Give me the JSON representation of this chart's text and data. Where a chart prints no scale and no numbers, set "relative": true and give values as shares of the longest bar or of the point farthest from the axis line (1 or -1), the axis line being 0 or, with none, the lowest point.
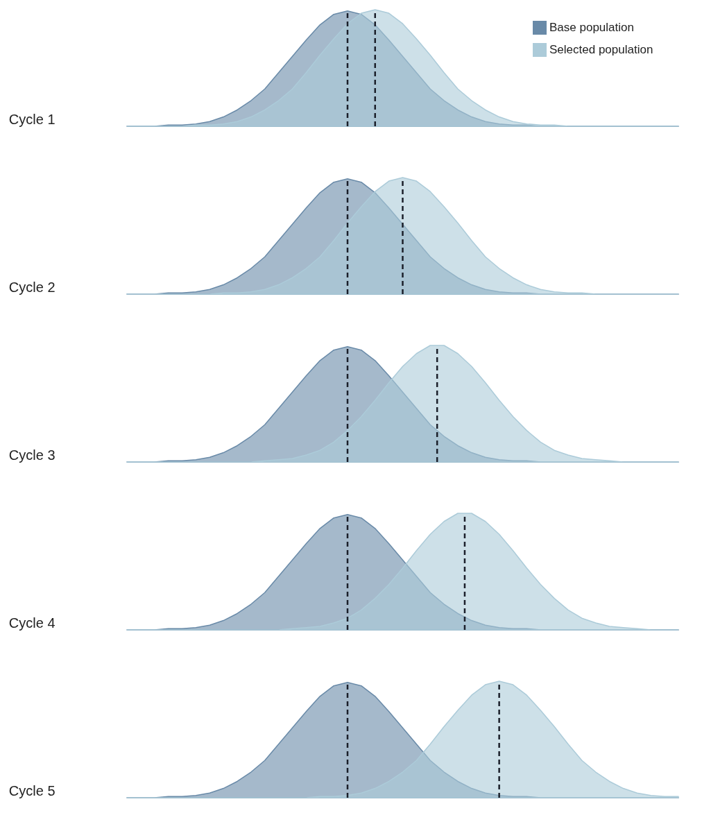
{
  "chart_data": [
    {
      "type": "area",
      "title": "Cycle 1",
      "relative": true,
      "legend": "top right",
      "line_style": "dashed",
      "categories": [
        null,
        null,
        null,
        null,
        null,
        null,
        null,
        null,
        null,
        null,
        null,
        null,
        null,
        null,
        null,
        null,
        null,
        null,
        null,
        null,
        null,
        null,
        null,
        null,
        null,
        null,
        null,
        null,
        null,
        null,
        null,
        null,
        null,
        null,
        null,
        null,
        null,
        null,
        null,
        null,
        null
      ],
      "series": [
        {
          "name": "Base population",
          "color": "#698aa8",
          "values": [
            0,
            0,
            0,
            0.01,
            0.01,
            0.02,
            0.04,
            0.08,
            0.14,
            0.22,
            0.32,
            0.46,
            0.6,
            0.74,
            0.87,
            0.96,
            0.99,
            0.96,
            0.87,
            0.74,
            0.6,
            0.46,
            0.32,
            0.22,
            0.14,
            0.08,
            0.04,
            0.02,
            0.01,
            0.01,
            0,
            0,
            0,
            0,
            0,
            0,
            0,
            0,
            0,
            0,
            0
          ]
        },
        {
          "name": "Selected population",
          "color": "#accbd9",
          "values": [
            0,
            0,
            0,
            0,
            0,
            0.01,
            0.01,
            0.02,
            0.04,
            0.08,
            0.14,
            0.22,
            0.32,
            0.46,
            0.61,
            0.75,
            0.88,
            0.97,
            1,
            0.97,
            0.88,
            0.75,
            0.61,
            0.46,
            0.32,
            0.22,
            0.14,
            0.08,
            0.04,
            0.02,
            0.01,
            0.01,
            0,
            0,
            0,
            0,
            0,
            0,
            0,
            0,
            0
          ]
        }
      ]
    },
    {
      "type": "area",
      "title": "Cycle 2",
      "relative": true,
      "line_style": "dashed",
      "categories": [
        null,
        null,
        null,
        null,
        null,
        null,
        null,
        null,
        null,
        null,
        null,
        null,
        null,
        null,
        null,
        null,
        null,
        null,
        null,
        null,
        null,
        null,
        null,
        null,
        null,
        null,
        null,
        null,
        null,
        null,
        null,
        null,
        null,
        null,
        null,
        null,
        null,
        null,
        null,
        null,
        null
      ],
      "series": [
        {
          "color": "#698aa8",
          "values": [
            0,
            0,
            0,
            0.01,
            0.01,
            0.02,
            0.04,
            0.08,
            0.14,
            0.22,
            0.32,
            0.46,
            0.6,
            0.74,
            0.87,
            0.96,
            0.99,
            0.96,
            0.87,
            0.74,
            0.6,
            0.46,
            0.32,
            0.22,
            0.14,
            0.08,
            0.04,
            0.02,
            0.01,
            0.01,
            0,
            0,
            0,
            0,
            0,
            0,
            0,
            0,
            0,
            0,
            0
          ]
        },
        {
          "color": "#accbd9",
          "values": [
            0,
            0,
            0,
            0,
            0,
            0,
            0,
            0.01,
            0.01,
            0.02,
            0.04,
            0.08,
            0.14,
            0.22,
            0.32,
            0.46,
            0.61,
            0.75,
            0.88,
            0.97,
            1,
            0.97,
            0.88,
            0.75,
            0.61,
            0.46,
            0.32,
            0.22,
            0.14,
            0.08,
            0.04,
            0.02,
            0.01,
            0.01,
            0,
            0,
            0,
            0,
            0,
            0,
            0
          ]
        }
      ]
    },
    {
      "type": "area",
      "title": "Cycle 3",
      "relative": true,
      "line_style": "dashed",
      "categories": [
        null,
        null,
        null,
        null,
        null,
        null,
        null,
        null,
        null,
        null,
        null,
        null,
        null,
        null,
        null,
        null,
        null,
        null,
        null,
        null,
        null,
        null,
        null,
        null,
        null,
        null,
        null,
        null,
        null,
        null,
        null,
        null,
        null,
        null,
        null,
        null,
        null,
        null,
        null,
        null,
        null
      ],
      "series": [
        {
          "color": "#698aa8",
          "values": [
            0,
            0,
            0,
            0.01,
            0.01,
            0.02,
            0.04,
            0.08,
            0.14,
            0.22,
            0.32,
            0.46,
            0.6,
            0.74,
            0.87,
            0.96,
            0.99,
            0.96,
            0.87,
            0.74,
            0.6,
            0.46,
            0.32,
            0.22,
            0.14,
            0.08,
            0.04,
            0.02,
            0.01,
            0.01,
            0,
            0,
            0,
            0,
            0,
            0,
            0,
            0,
            0,
            0,
            0
          ]
        },
        {
          "color": "#accbd9",
          "values": [
            0,
            0,
            0,
            0,
            0,
            0,
            0,
            0,
            0,
            0,
            0.01,
            0.02,
            0.03,
            0.06,
            0.1,
            0.17,
            0.27,
            0.39,
            0.53,
            0.68,
            0.82,
            0.93,
            1,
            1,
            0.93,
            0.82,
            0.68,
            0.53,
            0.39,
            0.27,
            0.17,
            0.1,
            0.06,
            0.03,
            0.02,
            0.01,
            0,
            0,
            0,
            0,
            0
          ]
        }
      ]
    },
    {
      "type": "area",
      "title": "Cycle 4",
      "relative": true,
      "line_style": "dashed",
      "categories": [
        null,
        null,
        null,
        null,
        null,
        null,
        null,
        null,
        null,
        null,
        null,
        null,
        null,
        null,
        null,
        null,
        null,
        null,
        null,
        null,
        null,
        null,
        null,
        null,
        null,
        null,
        null,
        null,
        null,
        null,
        null,
        null,
        null,
        null,
        null,
        null,
        null,
        null,
        null,
        null,
        null
      ],
      "series": [
        {
          "color": "#698aa8",
          "values": [
            0,
            0,
            0,
            0.01,
            0.01,
            0.02,
            0.04,
            0.08,
            0.14,
            0.22,
            0.32,
            0.46,
            0.6,
            0.74,
            0.87,
            0.96,
            0.99,
            0.96,
            0.87,
            0.74,
            0.6,
            0.46,
            0.32,
            0.22,
            0.14,
            0.08,
            0.04,
            0.02,
            0.01,
            0.01,
            0,
            0,
            0,
            0,
            0,
            0,
            0,
            0,
            0,
            0,
            0
          ]
        },
        {
          "color": "#accbd9",
          "values": [
            0,
            0,
            0,
            0,
            0,
            0,
            0,
            0,
            0,
            0,
            0,
            0,
            0.01,
            0.02,
            0.03,
            0.06,
            0.1,
            0.17,
            0.27,
            0.39,
            0.53,
            0.68,
            0.82,
            0.93,
            1,
            1,
            0.93,
            0.82,
            0.68,
            0.53,
            0.39,
            0.27,
            0.17,
            0.1,
            0.06,
            0.03,
            0.02,
            0.01,
            0,
            0,
            0
          ]
        }
      ]
    },
    {
      "type": "area",
      "title": "Cycle 5",
      "relative": true,
      "line_style": "dashed",
      "categories": [
        null,
        null,
        null,
        null,
        null,
        null,
        null,
        null,
        null,
        null,
        null,
        null,
        null,
        null,
        null,
        null,
        null,
        null,
        null,
        null,
        null,
        null,
        null,
        null,
        null,
        null,
        null,
        null,
        null,
        null,
        null,
        null,
        null,
        null,
        null,
        null,
        null,
        null,
        null,
        null,
        null
      ],
      "series": [
        {
          "color": "#698aa8",
          "values": [
            0,
            0,
            0,
            0.01,
            0.01,
            0.02,
            0.04,
            0.08,
            0.14,
            0.22,
            0.32,
            0.46,
            0.6,
            0.74,
            0.87,
            0.96,
            0.99,
            0.96,
            0.87,
            0.74,
            0.6,
            0.46,
            0.32,
            0.22,
            0.14,
            0.08,
            0.04,
            0.02,
            0.01,
            0.01,
            0,
            0,
            0,
            0,
            0,
            0,
            0,
            0,
            0,
            0,
            0
          ]
        },
        {
          "color": "#accbd9",
          "values": [
            0,
            0,
            0,
            0,
            0,
            0,
            0,
            0,
            0,
            0,
            0,
            0,
            0,
            0,
            0.01,
            0.01,
            0.02,
            0.04,
            0.08,
            0.14,
            0.22,
            0.32,
            0.46,
            0.61,
            0.75,
            0.88,
            0.97,
            1,
            0.97,
            0.88,
            0.75,
            0.61,
            0.46,
            0.32,
            0.22,
            0.14,
            0.08,
            0.04,
            0.02,
            0.01,
            0.01
          ]
        }
      ]
    }
  ]
}
